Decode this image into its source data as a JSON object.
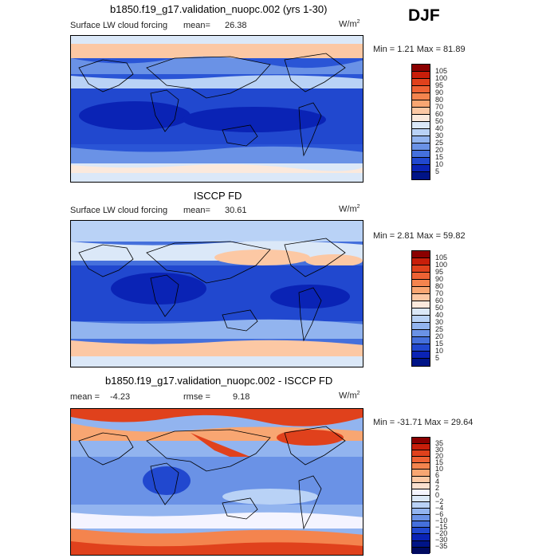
{
  "season": "DJF",
  "panels": [
    {
      "title": "b1850.f19_g17.validation_nuopc.002 (yrs 1-30)",
      "variable": "Surface LW cloud forcing",
      "mean_label": "mean=",
      "mean_value": "26.38",
      "units": "W/m",
      "units_sup": "2",
      "range_text": "Min =   1.21 Max =  81.89",
      "levels": [
        "105",
        "100",
        "95",
        "90",
        "80",
        "70",
        "60",
        "50",
        "40",
        "30",
        "25",
        "20",
        "15",
        "10",
        "5"
      ],
      "colors": [
        "#8b0000",
        "#c81e0a",
        "#e0411c",
        "#ee6234",
        "#f4844e",
        "#f8a672",
        "#fcc8a4",
        "#fbe9dc",
        "#dbe8f8",
        "#b9d2f6",
        "#92b4ef",
        "#6a92e6",
        "#4570dc",
        "#2148cf",
        "#0a23b5",
        "#001487"
      ]
    },
    {
      "title": "ISCCP FD",
      "variable": "Surface LW cloud forcing",
      "mean_label": "mean=",
      "mean_value": "30.61",
      "units": "W/m",
      "units_sup": "2",
      "range_text": "Min =   2.81 Max =  59.82",
      "levels": [
        "105",
        "100",
        "95",
        "90",
        "80",
        "70",
        "60",
        "50",
        "40",
        "30",
        "25",
        "20",
        "15",
        "10",
        "5"
      ],
      "colors": [
        "#8b0000",
        "#c81e0a",
        "#e0411c",
        "#ee6234",
        "#f4844e",
        "#f8a672",
        "#fcc8a4",
        "#fbe9dc",
        "#dbe8f8",
        "#b9d2f6",
        "#92b4ef",
        "#6a92e6",
        "#4570dc",
        "#2148cf",
        "#0a23b5",
        "#001487"
      ]
    },
    {
      "title": "b1850.f19_g17.validation_nuopc.002 - ISCCP FD",
      "mean_label": "mean =",
      "mean_value": "-4.23",
      "rmse_label": "rmse =",
      "rmse_value": "9.18",
      "units": "W/m",
      "units_sup": "2",
      "range_text": "Min = -31.71 Max =  29.64",
      "levels": [
        "35",
        "30",
        "20",
        "15",
        "10",
        "6",
        "4",
        "2",
        "0",
        "−2",
        "−4",
        "−6",
        "−10",
        "−15",
        "−20",
        "−30",
        "−35"
      ],
      "colors": [
        "#8b0000",
        "#c81e0a",
        "#e0411c",
        "#ee6234",
        "#f4844e",
        "#f8a672",
        "#fcc8a4",
        "#fbe0cf",
        "#f4f4ff",
        "#dbe8f8",
        "#b9d2f6",
        "#92b4ef",
        "#6a92e6",
        "#4570dc",
        "#2148cf",
        "#0a23b5",
        "#001487",
        "#000a60"
      ]
    }
  ]
}
